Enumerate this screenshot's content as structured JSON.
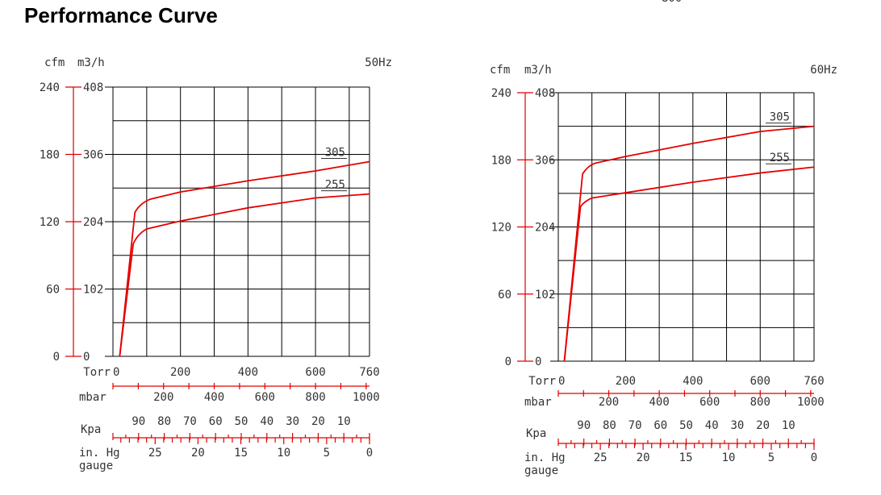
{
  "page_title": "Performance Curve",
  "stray_text": "800",
  "colors": {
    "curve": "#e60000",
    "axis_red": "#e00000",
    "grid": "#000000"
  },
  "chart_data": [
    {
      "type": "line",
      "frequency_label": "50Hz",
      "y_units": [
        "cfm",
        "m3/h"
      ],
      "y_ticks_cfm": [
        0,
        60,
        120,
        180,
        240
      ],
      "y_ticks_m3h": [
        0,
        102,
        204,
        306,
        408
      ],
      "x_torr_ticks": [
        0,
        200,
        400,
        600,
        760
      ],
      "xlim_torr": [
        0,
        760
      ],
      "ylim_m3h": [
        0,
        408
      ],
      "x_scales": {
        "torr": {
          "label": "Torr",
          "ticks": [
            0,
            200,
            400,
            600,
            760
          ]
        },
        "mbar": {
          "label": "mbar",
          "ticks": [
            200,
            400,
            600,
            800,
            1000
          ]
        },
        "kpa": {
          "label": "Kpa",
          "ticks": [
            90,
            80,
            70,
            60,
            50,
            40,
            30,
            20,
            10
          ]
        },
        "inhg": {
          "label": "in. Hg",
          "label2": "gauge",
          "ticks": [
            25,
            20,
            15,
            10,
            5,
            0
          ]
        }
      },
      "grid": true,
      "series": [
        {
          "name": "305",
          "x": [
            20,
            65,
            80,
            110,
            200,
            400,
            600,
            760
          ],
          "y": [
            0,
            218,
            232,
            238,
            249,
            266,
            281,
            295
          ]
        },
        {
          "name": "255",
          "x": [
            20,
            60,
            72,
            100,
            200,
            400,
            600,
            760
          ],
          "y": [
            0,
            170,
            185,
            193,
            205,
            225,
            240,
            246
          ]
        }
      ]
    },
    {
      "type": "line",
      "frequency_label": "60Hz",
      "y_units": [
        "cfm",
        "m3/h"
      ],
      "y_ticks_cfm": [
        0,
        60,
        120,
        180,
        240
      ],
      "y_ticks_m3h": [
        0,
        102,
        204,
        306,
        408
      ],
      "x_torr_ticks": [
        0,
        200,
        400,
        600,
        760
      ],
      "xlim_torr": [
        0,
        760
      ],
      "ylim_m3h": [
        0,
        408
      ],
      "x_scales": {
        "torr": {
          "label": "Torr",
          "ticks": [
            0,
            200,
            400,
            600,
            760
          ]
        },
        "mbar": {
          "label": "mbar",
          "ticks": [
            200,
            400,
            600,
            800,
            1000
          ]
        },
        "kpa": {
          "label": "Kpa",
          "ticks": [
            90,
            80,
            70,
            60,
            50,
            40,
            30,
            20,
            10
          ]
        },
        "inhg": {
          "label": "in. Hg",
          "label2": "gauge",
          "ticks": [
            25,
            20,
            15,
            10,
            5,
            0
          ]
        }
      },
      "grid": true,
      "series": [
        {
          "name": "305",
          "x": [
            18,
            72,
            85,
            110,
            200,
            400,
            600,
            760
          ],
          "y": [
            0,
            284,
            296,
            301,
            311,
            331,
            349,
            357
          ]
        },
        {
          "name": "255",
          "x": [
            18,
            66,
            78,
            100,
            200,
            400,
            600,
            760
          ],
          "y": [
            0,
            235,
            243,
            248,
            256,
            272,
            286,
            295
          ]
        }
      ]
    }
  ]
}
